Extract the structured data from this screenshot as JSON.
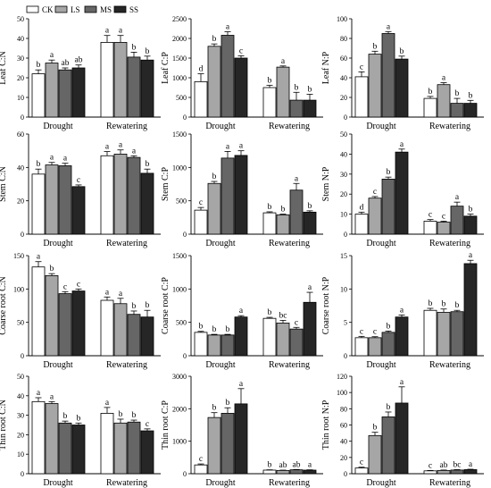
{
  "legend": {
    "items": [
      {
        "label": "CK",
        "color": "#ffffff"
      },
      {
        "label": "LS",
        "color": "#a6a6a6"
      },
      {
        "label": "MS",
        "color": "#666666"
      },
      {
        "label": "SS",
        "color": "#262626"
      }
    ]
  },
  "chart_data": [
    {
      "type": "bar",
      "ylabel": "Leaf C:N",
      "ylim": [
        0,
        50
      ],
      "yticks": [
        0,
        10,
        20,
        30,
        40,
        50
      ],
      "categories": [
        "Drought",
        "Rewatering"
      ],
      "series": [
        {
          "name": "CK",
          "values": [
            22,
            38
          ],
          "errors": [
            2,
            3.5
          ],
          "letters": [
            "b",
            "a"
          ]
        },
        {
          "name": "LS",
          "values": [
            27.5,
            38
          ],
          "errors": [
            1.5,
            3.5
          ],
          "letters": [
            "a",
            "a"
          ]
        },
        {
          "name": "MS",
          "values": [
            24,
            30.5
          ],
          "errors": [
            1,
            2.5
          ],
          "letters": [
            "ab",
            "b"
          ]
        },
        {
          "name": "SS",
          "values": [
            25,
            29
          ],
          "errors": [
            1.5,
            2
          ],
          "letters": [
            "ab",
            "b"
          ]
        }
      ]
    },
    {
      "type": "bar",
      "ylabel": "Leaf C:P",
      "ylim": [
        0,
        2500
      ],
      "yticks": [
        0,
        500,
        1000,
        1500,
        2000,
        2500
      ],
      "categories": [
        "Drought",
        "Rewatering"
      ],
      "series": [
        {
          "name": "CK",
          "values": [
            900,
            750
          ],
          "errors": [
            200,
            60
          ],
          "letters": [
            "d",
            "b"
          ]
        },
        {
          "name": "LS",
          "values": [
            1800,
            1270
          ],
          "errors": [
            60,
            30
          ],
          "letters": [
            "b",
            "a"
          ]
        },
        {
          "name": "MS",
          "values": [
            2080,
            430
          ],
          "errors": [
            90,
            200
          ],
          "letters": [
            "a",
            "b"
          ]
        },
        {
          "name": "SS",
          "values": [
            1500,
            430
          ],
          "errors": [
            60,
            150
          ],
          "letters": [
            "c",
            "b"
          ]
        }
      ]
    },
    {
      "type": "bar",
      "ylabel": "Leaf N:P",
      "ylim": [
        0,
        100
      ],
      "yticks": [
        0,
        20,
        40,
        60,
        80,
        100
      ],
      "categories": [
        "Drought",
        "Rewatering"
      ],
      "series": [
        {
          "name": "CK",
          "values": [
            41,
            19
          ],
          "errors": [
            5,
            2
          ],
          "letters": [
            "c",
            "b"
          ]
        },
        {
          "name": "LS",
          "values": [
            64,
            33
          ],
          "errors": [
            3,
            2
          ],
          "letters": [
            "b",
            "a"
          ]
        },
        {
          "name": "MS",
          "values": [
            85,
            14
          ],
          "errors": [
            2,
            5
          ],
          "letters": [
            "a",
            "b"
          ]
        },
        {
          "name": "SS",
          "values": [
            59,
            14
          ],
          "errors": [
            3,
            3
          ],
          "letters": [
            "b",
            "b"
          ]
        }
      ]
    },
    {
      "type": "bar",
      "ylabel": "Stem C:N",
      "ylim": [
        0,
        60
      ],
      "yticks": [
        0,
        20,
        40,
        60
      ],
      "categories": [
        "Drought",
        "Rewatering"
      ],
      "series": [
        {
          "name": "CK",
          "values": [
            36,
            47
          ],
          "errors": [
            3,
            2.5
          ],
          "letters": [
            "b",
            "a"
          ]
        },
        {
          "name": "LS",
          "values": [
            41.5,
            48
          ],
          "errors": [
            1.5,
            2.5
          ],
          "letters": [
            "a",
            "a"
          ]
        },
        {
          "name": "MS",
          "values": [
            41,
            46
          ],
          "errors": [
            1.5,
            1
          ],
          "letters": [
            "a",
            "a"
          ]
        },
        {
          "name": "SS",
          "values": [
            28.5,
            36.5
          ],
          "errors": [
            1,
            2.5
          ],
          "letters": [
            "c",
            "b"
          ]
        }
      ]
    },
    {
      "type": "bar",
      "ylabel": "Stem C:P",
      "ylim": [
        0,
        1500
      ],
      "yticks": [
        0,
        500,
        1000,
        1500
      ],
      "categories": [
        "Drought",
        "Rewatering"
      ],
      "series": [
        {
          "name": "CK",
          "values": [
            360,
            320
          ],
          "errors": [
            40,
            15
          ],
          "letters": [
            "c",
            "b"
          ]
        },
        {
          "name": "LS",
          "values": [
            760,
            290
          ],
          "errors": [
            30,
            10
          ],
          "letters": [
            "b",
            "b"
          ]
        },
        {
          "name": "MS",
          "values": [
            1140,
            660
          ],
          "errors": [
            100,
            100
          ],
          "letters": [
            "a",
            "a"
          ]
        },
        {
          "name": "SS",
          "values": [
            1180,
            330
          ],
          "errors": [
            70,
            20
          ],
          "letters": [
            "a",
            "b"
          ]
        }
      ]
    },
    {
      "type": "bar",
      "ylabel": "Stem N:P",
      "ylim": [
        0,
        50
      ],
      "yticks": [
        0,
        10,
        20,
        30,
        40,
        50
      ],
      "categories": [
        "Drought",
        "Rewatering"
      ],
      "series": [
        {
          "name": "CK",
          "values": [
            10,
            6.5
          ],
          "errors": [
            1,
            0.8
          ],
          "letters": [
            "d",
            "c"
          ]
        },
        {
          "name": "LS",
          "values": [
            18,
            6
          ],
          "errors": [
            0.8,
            0.5
          ],
          "letters": [
            "c",
            "c"
          ]
        },
        {
          "name": "MS",
          "values": [
            27.5,
            14
          ],
          "errors": [
            1,
            2
          ],
          "letters": [
            "b",
            "a"
          ]
        },
        {
          "name": "SS",
          "values": [
            41,
            9
          ],
          "errors": [
            1.5,
            1
          ],
          "letters": [
            "a",
            "b"
          ]
        }
      ]
    },
    {
      "type": "bar",
      "ylabel": "Coarse root C:N",
      "ylim": [
        0,
        150
      ],
      "yticks": [
        0,
        50,
        100,
        150
      ],
      "categories": [
        "Drought",
        "Rewatering"
      ],
      "series": [
        {
          "name": "CK",
          "values": [
            133,
            83
          ],
          "errors": [
            8,
            5
          ],
          "letters": [
            "a",
            "a"
          ]
        },
        {
          "name": "LS",
          "values": [
            120,
            78
          ],
          "errors": [
            3,
            8
          ],
          "letters": [
            "b",
            "a"
          ]
        },
        {
          "name": "MS",
          "values": [
            93,
            62
          ],
          "errors": [
            3,
            5
          ],
          "letters": [
            "c",
            "b"
          ]
        },
        {
          "name": "SS",
          "values": [
            97,
            58
          ],
          "errors": [
            3,
            10
          ],
          "letters": [
            "c",
            "b"
          ]
        }
      ]
    },
    {
      "type": "bar",
      "ylabel": "Coarse root C:P",
      "ylim": [
        0,
        1500
      ],
      "yticks": [
        0,
        500,
        1000,
        1500
      ],
      "categories": [
        "Drought",
        "Rewatering"
      ],
      "series": [
        {
          "name": "CK",
          "values": [
            350,
            560
          ],
          "errors": [
            15,
            15
          ],
          "letters": [
            "b",
            "b"
          ]
        },
        {
          "name": "LS",
          "values": [
            310,
            490
          ],
          "errors": [
            10,
            40
          ],
          "letters": [
            "b",
            "bc"
          ]
        },
        {
          "name": "MS",
          "values": [
            310,
            400
          ],
          "errors": [
            10,
            25
          ],
          "letters": [
            "b",
            "c"
          ]
        },
        {
          "name": "SS",
          "values": [
            580,
            800
          ],
          "errors": [
            20,
            150
          ],
          "letters": [
            "a",
            "a"
          ]
        }
      ]
    },
    {
      "type": "bar",
      "ylabel": "Coarse root N:P",
      "ylim": [
        0,
        15
      ],
      "yticks": [
        0,
        5,
        10,
        15
      ],
      "categories": [
        "Drought",
        "Rewatering"
      ],
      "series": [
        {
          "name": "CK",
          "values": [
            2.7,
            6.8
          ],
          "errors": [
            0.2,
            0.3
          ],
          "letters": [
            "c",
            "b"
          ]
        },
        {
          "name": "LS",
          "values": [
            2.7,
            6.5
          ],
          "errors": [
            0.15,
            0.5
          ],
          "letters": [
            "c",
            "b"
          ]
        },
        {
          "name": "MS",
          "values": [
            3.5,
            6.6
          ],
          "errors": [
            0.2,
            0.2
          ],
          "letters": [
            "b",
            "b"
          ]
        },
        {
          "name": "SS",
          "values": [
            5.8,
            13.8
          ],
          "errors": [
            0.3,
            0.5
          ],
          "letters": [
            "a",
            "a"
          ]
        }
      ]
    },
    {
      "type": "bar",
      "ylabel": "Thin root C:N",
      "ylim": [
        0,
        50
      ],
      "yticks": [
        0,
        10,
        20,
        30,
        40,
        50
      ],
      "categories": [
        "Drought",
        "Rewatering"
      ],
      "series": [
        {
          "name": "CK",
          "values": [
            37,
            31
          ],
          "errors": [
            2,
            3
          ],
          "letters": [
            "a",
            "a"
          ]
        },
        {
          "name": "LS",
          "values": [
            36,
            26
          ],
          "errors": [
            1,
            2
          ],
          "letters": [
            "a",
            "b"
          ]
        },
        {
          "name": "MS",
          "values": [
            26,
            26.5
          ],
          "errors": [
            1,
            1
          ],
          "letters": [
            "b",
            "b"
          ]
        },
        {
          "name": "SS",
          "values": [
            25,
            22
          ],
          "errors": [
            1,
            1
          ],
          "letters": [
            "b",
            "c"
          ]
        }
      ]
    },
    {
      "type": "bar",
      "ylabel": "Thin root C:P",
      "ylim": [
        0,
        3000
      ],
      "yticks": [
        0,
        1000,
        2000,
        3000
      ],
      "categories": [
        "Drought",
        "Rewatering"
      ],
      "series": [
        {
          "name": "CK",
          "values": [
            270,
            110
          ],
          "errors": [
            30,
            10
          ],
          "letters": [
            "c",
            "b"
          ]
        },
        {
          "name": "LS",
          "values": [
            1730,
            100
          ],
          "errors": [
            150,
            10
          ],
          "letters": [
            "b",
            "ab"
          ]
        },
        {
          "name": "MS",
          "values": [
            1860,
            120
          ],
          "errors": [
            170,
            10
          ],
          "letters": [
            "b",
            "ab"
          ]
        },
        {
          "name": "SS",
          "values": [
            2150,
            110
          ],
          "errors": [
            470,
            10
          ],
          "letters": [
            "a",
            "a"
          ]
        }
      ]
    },
    {
      "type": "bar",
      "ylabel": "Thin root N:P",
      "ylim": [
        0,
        120
      ],
      "yticks": [
        0,
        20,
        40,
        60,
        80,
        100,
        120
      ],
      "categories": [
        "Drought",
        "Rewatering"
      ],
      "series": [
        {
          "name": "CK",
          "values": [
            7,
            3.5
          ],
          "errors": [
            1,
            0.5
          ],
          "letters": [
            "c",
            "c"
          ]
        },
        {
          "name": "LS",
          "values": [
            47,
            4
          ],
          "errors": [
            4,
            0.5
          ],
          "letters": [
            "b",
            "ab"
          ]
        },
        {
          "name": "MS",
          "values": [
            70,
            4.5
          ],
          "errors": [
            6,
            0.5
          ],
          "letters": [
            "b",
            "bc"
          ]
        },
        {
          "name": "SS",
          "values": [
            87,
            5
          ],
          "errors": [
            20,
            0.5
          ],
          "letters": [
            "a",
            "a"
          ]
        }
      ]
    }
  ]
}
